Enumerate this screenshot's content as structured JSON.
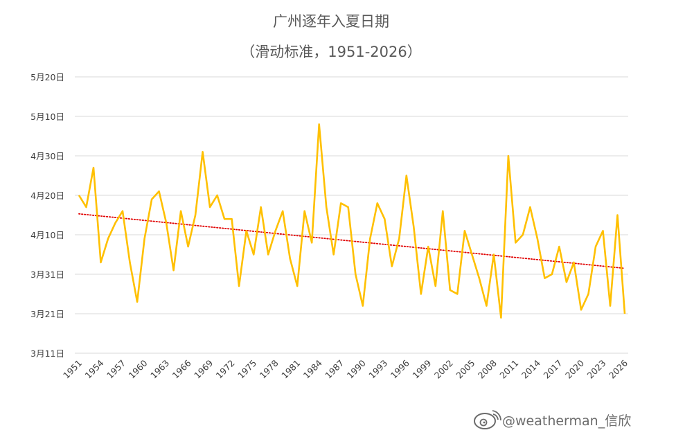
{
  "chart_data": {
    "type": "line",
    "title": "广州逐年入夏日期",
    "subtitle": "（滑动标准，1951-2026）",
    "xlabel": "",
    "ylabel": "",
    "x_start": 1951,
    "x_end": 2026,
    "x_tick_labels": [
      "1951",
      "1954",
      "1957",
      "1960",
      "1963",
      "1966",
      "1969",
      "1972",
      "1975",
      "1978",
      "1981",
      "1984",
      "1987",
      "1990",
      "1993",
      "1996",
      "1999",
      "2002",
      "2005",
      "2008",
      "2011",
      "2014",
      "2017",
      "2020",
      "2023",
      "2026"
    ],
    "y_tick_labels": [
      "3月11日",
      "3月21日",
      "3月31日",
      "4月10日",
      "4月20日",
      "4月30日",
      "5月10日",
      "5月20日"
    ],
    "y_axis_note": "y values are day of year (3月11日 = 70, 5月20日 = 140)",
    "ylim": [
      70,
      140
    ],
    "ytick_step": 10,
    "grid": true,
    "legend": "none",
    "series": [
      {
        "color": "#FFC000",
        "x": [
          1951,
          1952,
          1953,
          1954,
          1955,
          1956,
          1957,
          1958,
          1959,
          1960,
          1961,
          1962,
          1963,
          1964,
          1965,
          1966,
          1967,
          1968,
          1969,
          1970,
          1971,
          1972,
          1973,
          1974,
          1975,
          1976,
          1977,
          1978,
          1979,
          1980,
          1981,
          1982,
          1983,
          1984,
          1985,
          1986,
          1987,
          1988,
          1989,
          1990,
          1991,
          1992,
          1993,
          1994,
          1995,
          1996,
          1997,
          1998,
          1999,
          2000,
          2001,
          2002,
          2003,
          2004,
          2005,
          2006,
          2007,
          2008,
          2009,
          2010,
          2011,
          2012,
          2013,
          2014,
          2015,
          2016,
          2017,
          2018,
          2019,
          2020,
          2021,
          2022,
          2023,
          2024,
          2025,
          2026
        ],
        "y": [
          110,
          107,
          117,
          93,
          99,
          103,
          106,
          93,
          83,
          99,
          109,
          111,
          103,
          91,
          106,
          97,
          105,
          121,
          107,
          110,
          104,
          104,
          87,
          101,
          95,
          107,
          95,
          101,
          106,
          94,
          87,
          106,
          98,
          128,
          107,
          95,
          108,
          107,
          90,
          82,
          99,
          108,
          104,
          92,
          99,
          115,
          102,
          85,
          97,
          87,
          106,
          86,
          85,
          101,
          95,
          89,
          82,
          95,
          79,
          120,
          98,
          100,
          107,
          99,
          89,
          90,
          97,
          88,
          93,
          81,
          85,
          97,
          101,
          82,
          105,
          80
        ]
      }
    ],
    "trendline": {
      "color": "#E00000",
      "style": "dotted",
      "y_1951": 105.3,
      "y_2026": 91.5
    }
  },
  "watermark": {
    "text": "@weatherman_信欣",
    "icon": "weibo-icon"
  }
}
